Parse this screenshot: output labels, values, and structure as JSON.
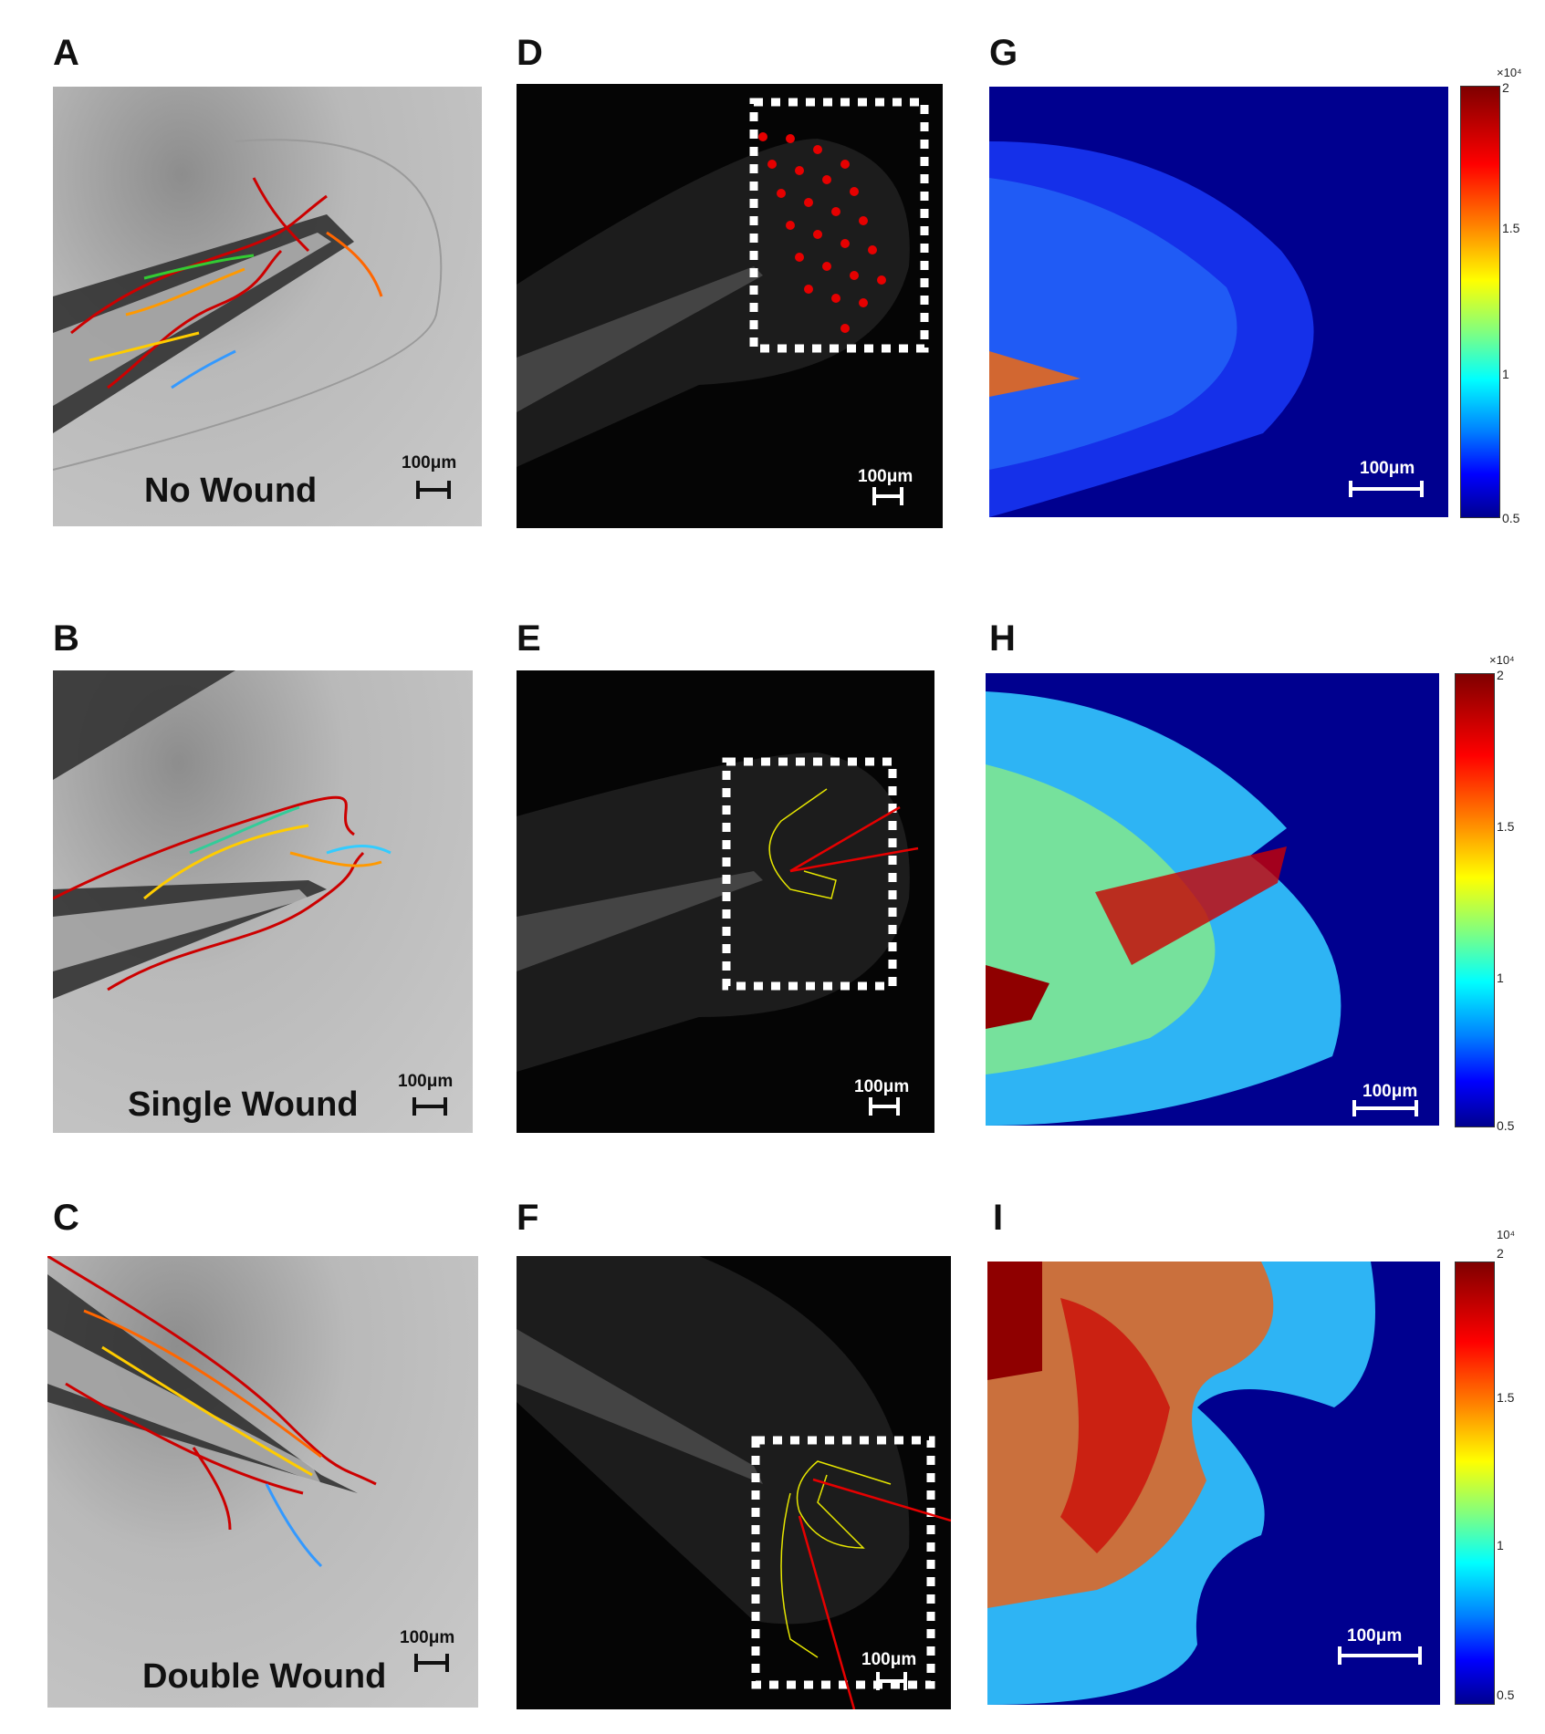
{
  "panels": {
    "A": {
      "letter": "A",
      "label": "No Wound",
      "scale": "100μm"
    },
    "B": {
      "letter": "B",
      "label": "Single Wound",
      "scale": "100μm"
    },
    "C": {
      "letter": "C",
      "label": "Double Wound",
      "scale": "100μm"
    },
    "D": {
      "letter": "D",
      "scale": "100μm"
    },
    "E": {
      "letter": "E",
      "scale": "100μm"
    },
    "F": {
      "letter": "F",
      "scale": "100μm"
    },
    "G": {
      "letter": "G",
      "scale": "100μm"
    },
    "H": {
      "letter": "H",
      "scale": "100μm"
    },
    "I": {
      "letter": "I",
      "scale": "100μm"
    }
  },
  "colorbars": {
    "G": {
      "exponent": "×10⁴",
      "ticks": [
        "2",
        "1.5",
        "1",
        "0.5"
      ]
    },
    "H": {
      "exponent": "×10⁴",
      "ticks": [
        "2",
        "1.5",
        "1",
        "0.5"
      ]
    },
    "I": {
      "exponent": "10⁴",
      "ticks": [
        "2",
        "1.5",
        "1",
        "0.5"
      ]
    }
  },
  "colors": {
    "track_red": "#cc0000",
    "box_white": "#ffffff",
    "wound_yellow": "#e6e600",
    "colormap": "jet"
  }
}
